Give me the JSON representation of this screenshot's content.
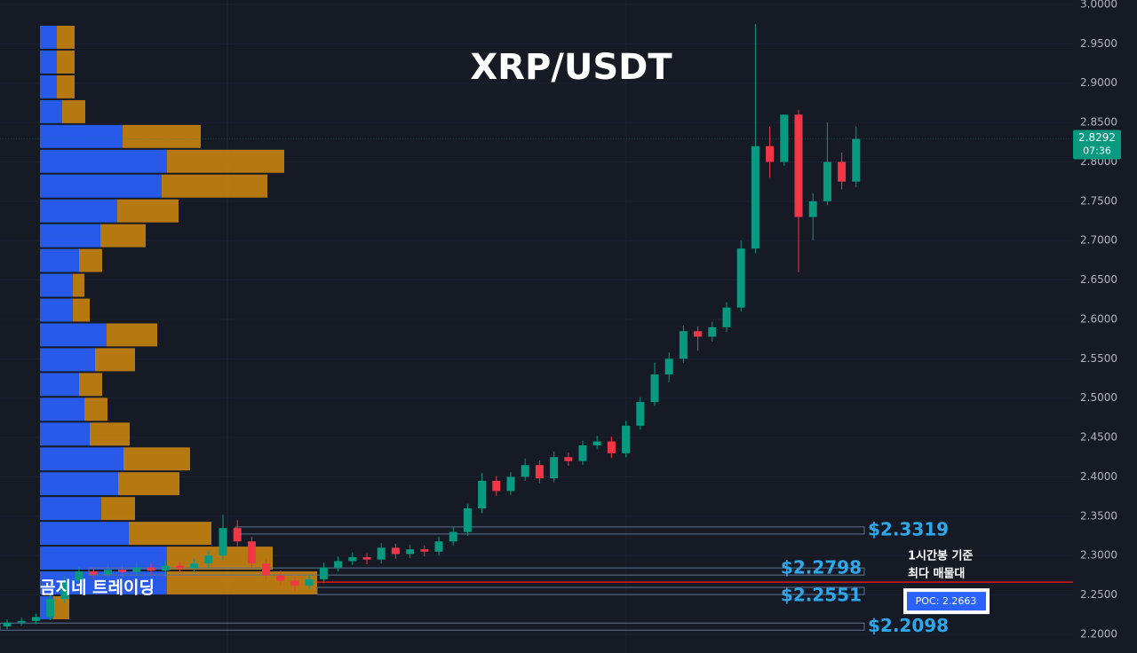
{
  "chart_data": {
    "type": "candlestick",
    "title": "XRP/USDT",
    "watermark": "곰지네 트레이딩",
    "up_color": "#089981",
    "down_color": "#f23645",
    "open": [
      2.21,
      2.215,
      2.217,
      2.222,
      2.245,
      2.268,
      2.28,
      2.276,
      2.282,
      2.279,
      2.285,
      2.281,
      2.287,
      2.284,
      2.29,
      2.3,
      2.335,
      2.318,
      2.29,
      2.275,
      2.268,
      2.262,
      2.27,
      2.285,
      2.293,
      2.298,
      2.295,
      2.31,
      2.302,
      2.308,
      2.305,
      2.318,
      2.33,
      2.36,
      2.395,
      2.382,
      2.4,
      2.415,
      2.398,
      2.425,
      2.42,
      2.44,
      2.445,
      2.43,
      2.465,
      2.495,
      2.53,
      2.55,
      2.585,
      2.578,
      2.59,
      2.615,
      2.69,
      2.82,
      2.8,
      2.86,
      2.73,
      2.75,
      2.8,
      2.775
    ],
    "high": [
      2.219,
      2.221,
      2.226,
      2.251,
      2.274,
      2.286,
      2.285,
      2.288,
      2.287,
      2.291,
      2.29,
      2.293,
      2.292,
      2.296,
      2.306,
      2.352,
      2.345,
      2.324,
      2.296,
      2.281,
      2.273,
      2.276,
      2.291,
      2.299,
      2.304,
      2.303,
      2.316,
      2.315,
      2.314,
      2.313,
      2.324,
      2.336,
      2.366,
      2.405,
      2.401,
      2.406,
      2.423,
      2.421,
      2.432,
      2.431,
      2.446,
      2.452,
      2.451,
      2.471,
      2.501,
      2.545,
      2.558,
      2.592,
      2.591,
      2.597,
      2.622,
      2.7,
      2.975,
      2.845,
      2.86,
      2.866,
      2.76,
      2.85,
      2.812,
      2.845
    ],
    "low": [
      2.206,
      2.211,
      2.213,
      2.218,
      2.24,
      2.262,
      2.27,
      2.271,
      2.273,
      2.274,
      2.275,
      2.276,
      2.278,
      2.279,
      2.284,
      2.294,
      2.312,
      2.284,
      2.269,
      2.262,
      2.255,
      2.257,
      2.265,
      2.28,
      2.288,
      2.289,
      2.29,
      2.296,
      2.297,
      2.299,
      2.3,
      2.313,
      2.325,
      2.354,
      2.376,
      2.377,
      2.395,
      2.392,
      2.393,
      2.414,
      2.415,
      2.435,
      2.424,
      2.425,
      2.46,
      2.49,
      2.52,
      2.545,
      2.56,
      2.572,
      2.584,
      2.61,
      2.684,
      2.78,
      2.795,
      2.66,
      2.7,
      2.745,
      2.765,
      2.768
    ],
    "close": [
      2.215,
      2.217,
      2.222,
      2.245,
      2.268,
      2.28,
      2.276,
      2.282,
      2.279,
      2.285,
      2.281,
      2.287,
      2.284,
      2.29,
      2.3,
      2.335,
      2.318,
      2.29,
      2.275,
      2.268,
      2.262,
      2.27,
      2.285,
      2.293,
      2.298,
      2.295,
      2.31,
      2.302,
      2.308,
      2.305,
      2.318,
      2.33,
      2.36,
      2.395,
      2.382,
      2.4,
      2.415,
      2.398,
      2.425,
      2.42,
      2.44,
      2.445,
      2.43,
      2.465,
      2.495,
      2.53,
      2.55,
      2.585,
      2.578,
      2.59,
      2.615,
      2.69,
      2.82,
      2.8,
      2.86,
      2.73,
      2.75,
      2.8,
      2.775,
      2.8292
    ],
    "countdown": "07:36",
    "ylim": [
      2.1763,
      3.0056
    ],
    "yticks": [
      {
        "value": 2.2,
        "label": "2.2000"
      },
      {
        "value": 2.25,
        "label": "2.2500"
      },
      {
        "value": 2.3,
        "label": "2.3000"
      },
      {
        "value": 2.35,
        "label": "2.3500"
      },
      {
        "value": 2.4,
        "label": "2.4000"
      },
      {
        "value": 2.45,
        "label": "2.4500"
      },
      {
        "value": 2.5,
        "label": "2.5000"
      },
      {
        "value": 2.55,
        "label": "2.5500"
      },
      {
        "value": 2.6,
        "label": "2.6000"
      },
      {
        "value": 2.65,
        "label": "2.6500"
      },
      {
        "value": 2.7,
        "label": "2.7000"
      },
      {
        "value": 2.75,
        "label": "2.7500"
      },
      {
        "value": 2.8,
        "label": "2.8000"
      },
      {
        "value": 2.85,
        "label": "2.8500"
      },
      {
        "value": 2.9,
        "label": "2.9000"
      },
      {
        "value": 2.95,
        "label": "2.9500"
      },
      {
        "value": 3.0,
        "label": "3.0000"
      }
    ],
    "profile": {
      "prices": [
        2.9583,
        2.9268,
        2.8953,
        2.8638,
        2.8323,
        2.8008,
        2.7693,
        2.7378,
        2.7063,
        2.6748,
        2.6433,
        2.6118,
        2.5803,
        2.5488,
        2.5173,
        2.4858,
        2.4543,
        2.4228,
        2.3913,
        2.3598,
        2.3283,
        2.2968,
        2.2653,
        2.2338
      ],
      "xlim": [
        0,
        1235
      ],
      "series": [
        {
          "color": "#2962ff",
          "values": [
            19,
            19,
            19,
            25,
            93,
            143,
            137,
            87,
            68,
            44,
            37,
            37,
            75,
            62,
            44,
            50,
            56,
            94,
            88,
            69,
            100,
            143,
            143,
            15
          ]
        },
        {
          "color": "#c88411",
          "values": [
            20,
            20,
            20,
            26,
            88,
            132,
            119,
            69,
            51,
            26,
            13,
            19,
            57,
            45,
            26,
            26,
            45,
            75,
            69,
            38,
            93,
            119,
            169,
            18
          ]
        }
      ]
    },
    "levels": [
      {
        "value": 2.3319,
        "label": "$2.3319"
      },
      {
        "value": 2.2798,
        "label": "$2.2798"
      },
      {
        "value": 2.2551,
        "label": "$2.2551"
      },
      {
        "value": 2.2098,
        "label": "$2.2098"
      }
    ],
    "poc": {
      "value": 2.2663,
      "label": "POC: 2.2663"
    },
    "note": [
      "1시간봉 기준",
      "최다 매물대"
    ]
  }
}
